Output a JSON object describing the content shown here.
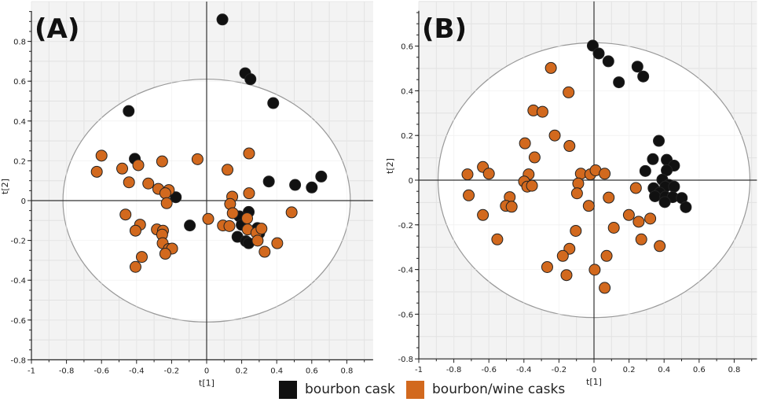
{
  "chart_data": [
    {
      "type": "scatter",
      "panel_label": "(A)",
      "xlabel": "t[1]",
      "ylabel": "t[2]",
      "xlim": [
        -1,
        0.95
      ],
      "ylim": [
        -0.8,
        1.0
      ],
      "xticks": [
        -1,
        -0.8,
        -0.6,
        -0.4,
        -0.2,
        0,
        0.2,
        0.4,
        0.6,
        0.8
      ],
      "yticks": [
        -0.8,
        -0.6,
        -0.4,
        -0.2,
        0,
        0.2,
        0.4,
        0.6,
        0.8
      ],
      "grid": true,
      "hotelling_ellipse": {
        "rx": 0.82,
        "ry": 0.61
      },
      "series": [
        {
          "name": "bourbon cask",
          "color": "#111111",
          "points": [
            [
              0.09,
              0.91
            ],
            [
              0.22,
              0.64
            ],
            [
              0.25,
              0.61
            ],
            [
              0.38,
              0.49
            ],
            [
              -0.445,
              0.45
            ],
            [
              -0.41,
              0.21
            ],
            [
              -0.176,
              0.017
            ],
            [
              0.355,
              0.096
            ],
            [
              0.505,
              0.079
            ],
            [
              0.6,
              0.066
            ],
            [
              0.654,
              0.121
            ],
            [
              -0.096,
              -0.125
            ],
            [
              0.24,
              -0.057
            ],
            [
              0.187,
              -0.079
            ],
            [
              0.2,
              -0.122
            ],
            [
              0.29,
              -0.138
            ],
            [
              0.3,
              -0.164
            ],
            [
              0.176,
              -0.182
            ],
            [
              0.224,
              -0.204
            ],
            [
              0.24,
              -0.214
            ]
          ]
        },
        {
          "name": "bourbon/wine casks",
          "color": "#d2691e",
          "points": [
            [
              -0.6,
              0.226
            ],
            [
              -0.627,
              0.145
            ],
            [
              -0.482,
              0.161
            ],
            [
              -0.39,
              0.178
            ],
            [
              -0.443,
              0.092
            ],
            [
              -0.333,
              0.086
            ],
            [
              -0.254,
              0.197
            ],
            [
              -0.052,
              0.208
            ],
            [
              -0.276,
              0.059
            ],
            [
              -0.216,
              0.053
            ],
            [
              -0.236,
              0.037
            ],
            [
              -0.228,
              -0.013
            ],
            [
              -0.463,
              -0.07
            ],
            [
              -0.38,
              -0.121
            ],
            [
              -0.406,
              -0.151
            ],
            [
              -0.284,
              -0.145
            ],
            [
              -0.249,
              -0.151
            ],
            [
              -0.254,
              -0.171
            ],
            [
              -0.251,
              -0.214
            ],
            [
              -0.216,
              -0.243
            ],
            [
              -0.197,
              -0.241
            ],
            [
              -0.236,
              -0.267
            ],
            [
              -0.37,
              -0.283
            ],
            [
              -0.406,
              -0.333
            ],
            [
              0.009,
              -0.092
            ],
            [
              0.093,
              -0.125
            ],
            [
              0.13,
              -0.128
            ],
            [
              0.119,
              0.155
            ],
            [
              0.242,
              0.237
            ],
            [
              0.242,
              0.037
            ],
            [
              0.146,
              0.02
            ],
            [
              0.134,
              -0.017
            ],
            [
              0.149,
              -0.063
            ],
            [
              0.231,
              -0.089
            ],
            [
              0.234,
              -0.145
            ],
            [
              0.284,
              -0.162
            ],
            [
              0.313,
              -0.141
            ],
            [
              0.291,
              -0.201
            ],
            [
              0.331,
              -0.257
            ],
            [
              0.403,
              -0.214
            ],
            [
              0.485,
              -0.059
            ]
          ]
        }
      ]
    },
    {
      "type": "scatter",
      "panel_label": "(B)",
      "xlabel": "t[1]",
      "ylabel": "t[2]",
      "xlim": [
        -1,
        0.93
      ],
      "ylim": [
        -0.8,
        0.8
      ],
      "xticks": [
        -1,
        -0.8,
        -0.6,
        -0.4,
        -0.2,
        0,
        0.2,
        0.4,
        0.6,
        0.8
      ],
      "yticks": [
        -0.8,
        -0.6,
        -0.4,
        -0.2,
        0,
        0.2,
        0.4,
        0.6
      ],
      "grid": true,
      "hotelling_ellipse": {
        "rx": 0.89,
        "ry": 0.615
      },
      "series": [
        {
          "name": "bourbon cask",
          "color": "#111111",
          "points": [
            [
              -0.007,
              0.602
            ],
            [
              0.027,
              0.567
            ],
            [
              0.082,
              0.532
            ],
            [
              0.248,
              0.508
            ],
            [
              0.281,
              0.464
            ],
            [
              0.142,
              0.438
            ],
            [
              0.37,
              0.176
            ],
            [
              0.336,
              0.094
            ],
            [
              0.415,
              0.091
            ],
            [
              0.457,
              0.065
            ],
            [
              0.415,
              0.044
            ],
            [
              0.293,
              0.041
            ],
            [
              0.39,
              0.002
            ],
            [
              0.427,
              -0.021
            ],
            [
              0.407,
              -0.029
            ],
            [
              0.457,
              -0.029
            ],
            [
              0.34,
              -0.036
            ],
            [
              0.375,
              -0.056
            ],
            [
              0.348,
              -0.072
            ],
            [
              0.407,
              -0.074
            ],
            [
              0.449,
              -0.076
            ],
            [
              0.501,
              -0.08
            ],
            [
              0.404,
              -0.098
            ],
            [
              0.524,
              -0.121
            ]
          ]
        },
        {
          "name": "bourbon/wine casks",
          "color": "#d2691e",
          "points": [
            [
              -0.246,
              0.502
            ],
            [
              -0.145,
              0.393
            ],
            [
              -0.346,
              0.312
            ],
            [
              -0.294,
              0.306
            ],
            [
              -0.224,
              0.2
            ],
            [
              -0.394,
              0.165
            ],
            [
              -0.14,
              0.153
            ],
            [
              -0.339,
              0.102
            ],
            [
              -0.634,
              0.059
            ],
            [
              -0.722,
              0.026
            ],
            [
              -0.6,
              0.029
            ],
            [
              -0.373,
              0.026
            ],
            [
              -0.399,
              -0.006
            ],
            [
              -0.381,
              -0.029
            ],
            [
              -0.354,
              -0.025
            ],
            [
              -0.715,
              -0.068
            ],
            [
              -0.481,
              -0.076
            ],
            [
              -0.503,
              -0.115
            ],
            [
              -0.47,
              -0.119
            ],
            [
              -0.634,
              -0.156
            ],
            [
              -0.552,
              -0.265
            ],
            [
              -0.075,
              0.029
            ],
            [
              -0.021,
              0.026
            ],
            [
              0.009,
              0.044
            ],
            [
              0.061,
              0.029
            ],
            [
              -0.09,
              -0.015
            ],
            [
              -0.097,
              -0.059
            ],
            [
              -0.03,
              -0.115
            ],
            [
              0.084,
              -0.078
            ],
            [
              0.239,
              -0.035
            ],
            [
              0.199,
              -0.156
            ],
            [
              0.255,
              -0.186
            ],
            [
              0.321,
              -0.172
            ],
            [
              0.113,
              -0.213
            ],
            [
              0.27,
              -0.265
            ],
            [
              0.375,
              -0.295
            ],
            [
              -0.104,
              -0.227
            ],
            [
              -0.14,
              -0.307
            ],
            [
              -0.178,
              -0.339
            ],
            [
              0.072,
              -0.339
            ],
            [
              -0.267,
              -0.389
            ],
            [
              -0.157,
              -0.425
            ],
            [
              0.004,
              -0.401
            ],
            [
              0.061,
              -0.482
            ]
          ]
        }
      ]
    }
  ],
  "legend": {
    "items": [
      {
        "label": "bourbon cask",
        "color": "#111111"
      },
      {
        "label": "bourbon/wine casks",
        "color": "#d2691e"
      }
    ]
  }
}
